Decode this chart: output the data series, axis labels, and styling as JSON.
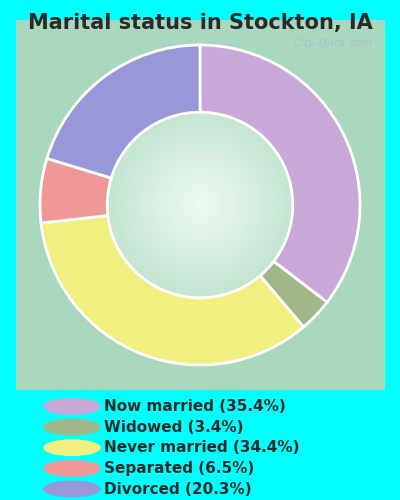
{
  "title": "Marital status in Stockton, IA",
  "outer_bg": "#00FFFF",
  "chart_bg_corner": "#a8d8c0",
  "chart_bg_center": "#e8f5f0",
  "slices": [
    {
      "label": "Now married (35.4%)",
      "value": 35.4,
      "color": "#c8a8d8"
    },
    {
      "label": "Widowed (3.4%)",
      "value": 3.4,
      "color": "#a0b888"
    },
    {
      "label": "Never married (34.4%)",
      "value": 34.4,
      "color": "#f0f080"
    },
    {
      "label": "Separated (6.5%)",
      "value": 6.5,
      "color": "#f09898"
    },
    {
      "label": "Divorced (20.3%)",
      "value": 20.3,
      "color": "#9898d8"
    }
  ],
  "legend_labels": [
    "Now married (35.4%)",
    "Widowed (3.4%)",
    "Never married (34.4%)",
    "Separated (6.5%)",
    "Divorced (20.3%)"
  ],
  "legend_colors": [
    "#c8a8d8",
    "#a0b888",
    "#f0f080",
    "#f09898",
    "#9898d8"
  ],
  "donut_width": 0.42,
  "title_fontsize": 15,
  "legend_fontsize": 11,
  "text_color": "#2a2a2a",
  "watermark": "City-Data.com",
  "watermark_color": "#aabbcc"
}
